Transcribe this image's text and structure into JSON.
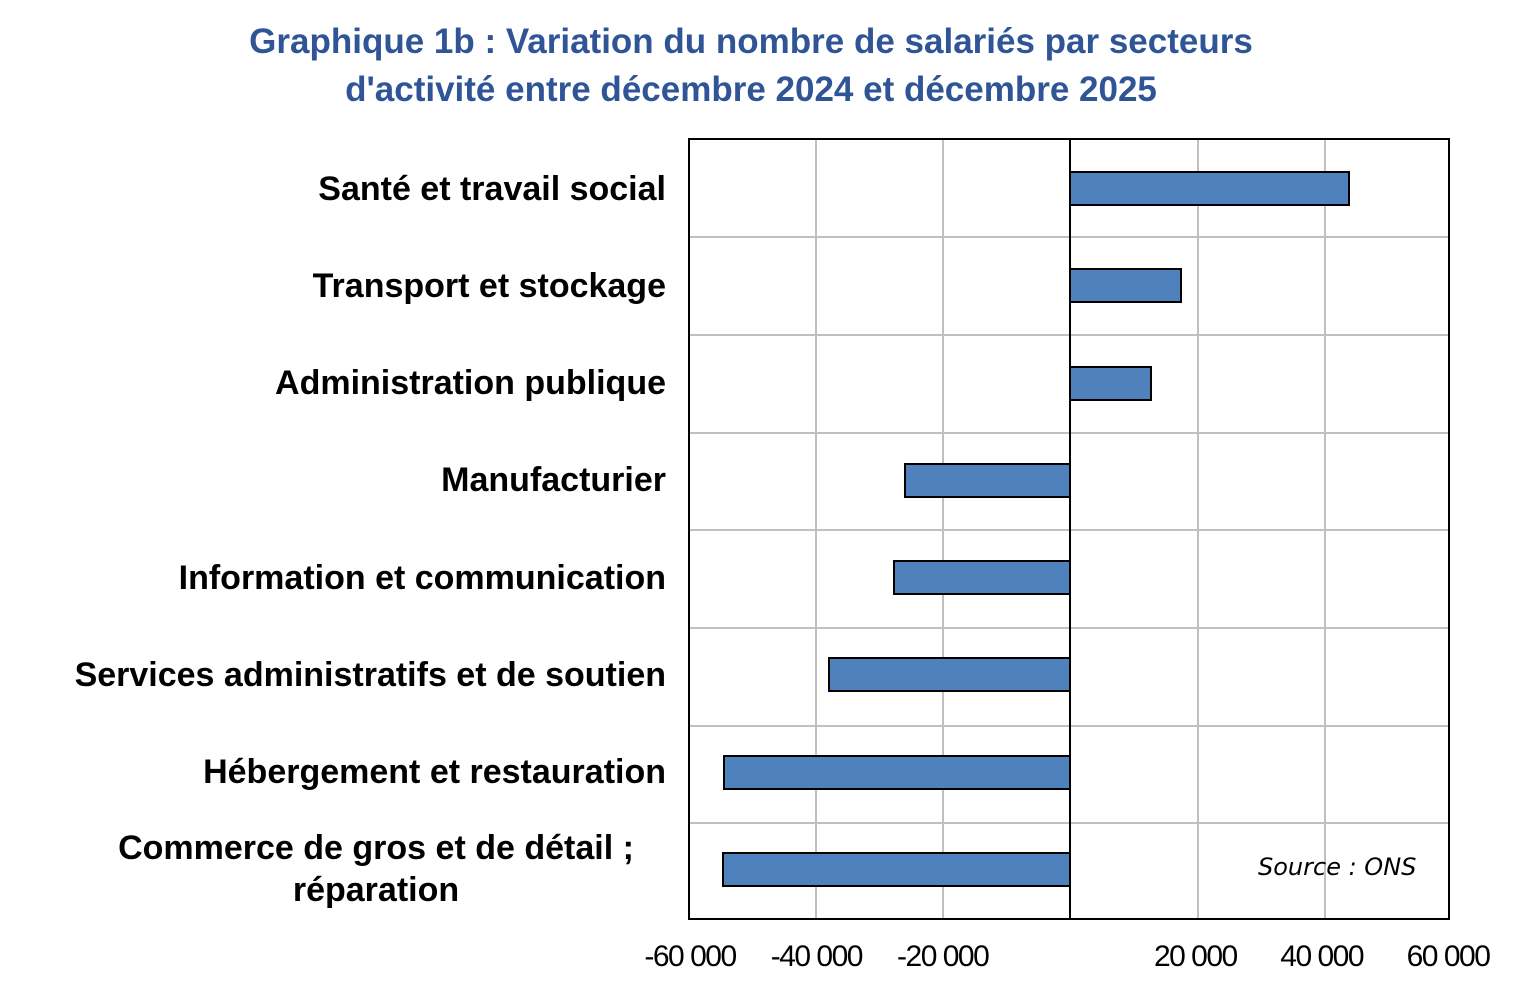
{
  "title": {
    "line1": "Graphique 1b : Variation du nombre de salariés par secteurs",
    "line2": "d'activité entre décembre 2024 et décembre 2025"
  },
  "source": "Source : ONS",
  "colors": {
    "title": "#2F5597",
    "bar": "#4F81BD",
    "grid": "#C0C0C0"
  },
  "axis": {
    "ticks": [
      "-60 000",
      "-40 000",
      "-20 000",
      "20 000",
      "40 000",
      "60 000"
    ]
  },
  "categories": [
    "Santé et travail social",
    "Transport et stockage",
    "Administration publique",
    "Manufacturier",
    "Information et communication",
    "Services administratifs et de soutien",
    "Hébergement et restauration",
    "Commerce de gros et de détail ; réparation"
  ],
  "chart_data": {
    "type": "bar",
    "orientation": "horizontal",
    "title": "Graphique 1b : Variation du nombre de salariés par secteurs d'activité entre décembre 2024 et décembre 2025",
    "categories": [
      "Santé et travail social",
      "Transport et stockage",
      "Administration publique",
      "Manufacturier",
      "Information et communication",
      "Services administratifs et de soutien",
      "Hébergement et restauration",
      "Commerce de gros et de détail ; réparation"
    ],
    "values": [
      44200,
      17600,
      12900,
      -26100,
      -27900,
      -38100,
      -54800,
      -54900
    ],
    "xlabel": "",
    "ylabel": "",
    "xlim": [
      -60000,
      60000
    ],
    "xticks": [
      -60000,
      -40000,
      -20000,
      20000,
      40000,
      60000
    ],
    "grid": true,
    "legend": null,
    "annotations": [
      "Source : ONS"
    ]
  }
}
